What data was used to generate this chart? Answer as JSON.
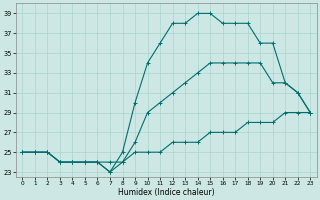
{
  "xlabel": "Humidex (Indice chaleur)",
  "ylabel": "",
  "bg_color": "#cde8e4",
  "grid_color": "#a8d4cc",
  "line_color": "#006e6e",
  "xlim": [
    -0.5,
    23.5
  ],
  "ylim": [
    22.5,
    40.0
  ],
  "xticks": [
    0,
    1,
    2,
    3,
    4,
    5,
    6,
    7,
    8,
    9,
    10,
    11,
    12,
    13,
    14,
    15,
    16,
    17,
    18,
    19,
    20,
    21,
    22,
    23
  ],
  "yticks": [
    23,
    25,
    27,
    29,
    31,
    33,
    35,
    37,
    39
  ],
  "line_top": [
    25,
    25,
    25,
    24,
    24,
    24,
    24,
    23,
    25,
    30,
    34,
    36,
    38,
    38,
    39,
    39,
    38,
    38,
    38,
    36,
    36,
    32,
    31,
    29
  ],
  "line_mid": [
    25,
    25,
    25,
    24,
    24,
    24,
    24,
    24,
    24,
    26,
    29,
    30,
    31,
    32,
    33,
    34,
    34,
    34,
    34,
    34,
    32,
    32,
    31,
    29
  ],
  "line_bot": [
    25,
    25,
    25,
    24,
    24,
    24,
    24,
    23,
    24,
    25,
    25,
    25,
    26,
    26,
    26,
    27,
    27,
    27,
    28,
    28,
    28,
    29,
    29,
    29
  ]
}
